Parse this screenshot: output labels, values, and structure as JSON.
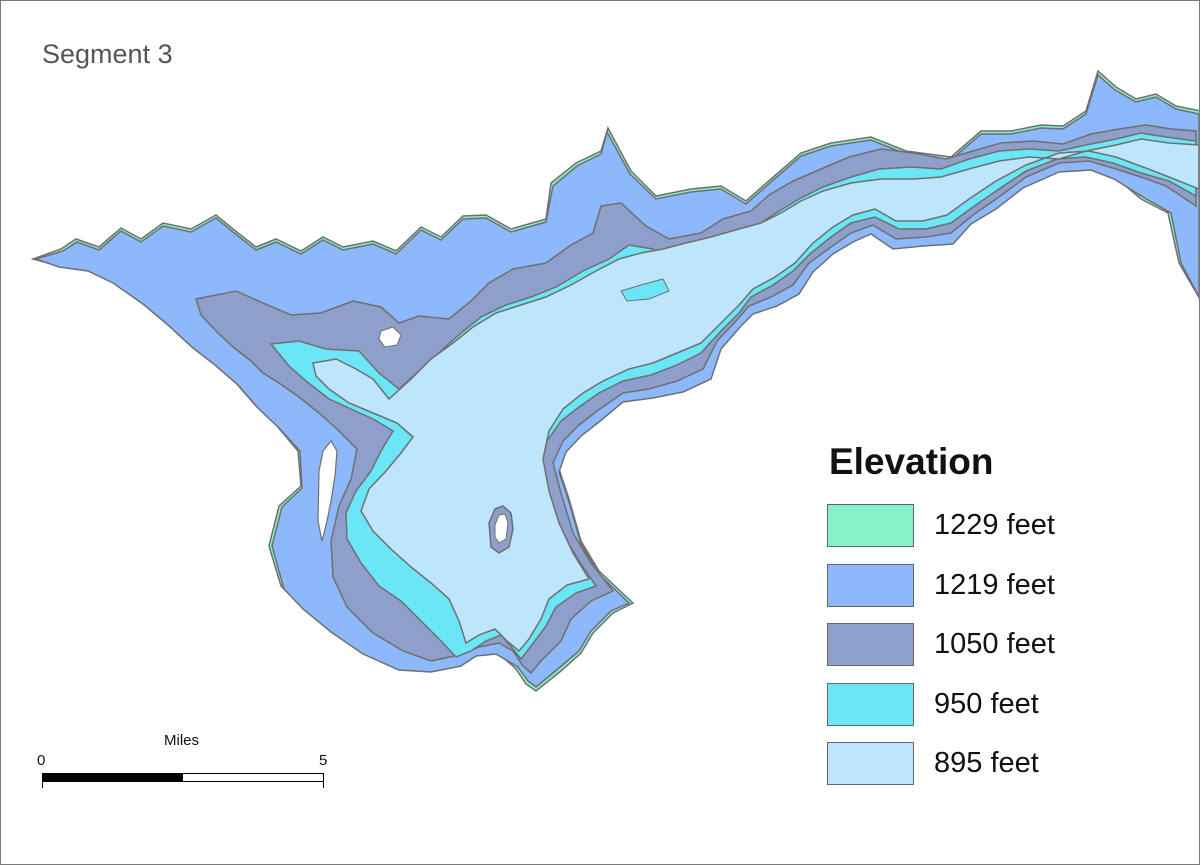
{
  "map": {
    "title": "Segment 3",
    "colors": {
      "background": "#ffffff",
      "outline": "#6f6f6f"
    },
    "legend": {
      "title": "Elevation",
      "items": [
        {
          "label": "1229 feet",
          "color": "#86f0c8"
        },
        {
          "label": "1219 feet",
          "color": "#8db8fb"
        },
        {
          "label": "1050 feet",
          "color": "#8e9fcb"
        },
        {
          "label": "950 feet",
          "color": "#6ae6f6"
        },
        {
          "label": "895 feet",
          "color": "#bde5fb"
        }
      ]
    },
    "scalebar": {
      "unit": "Miles",
      "ticks": [
        "0",
        "5"
      ]
    }
  }
}
